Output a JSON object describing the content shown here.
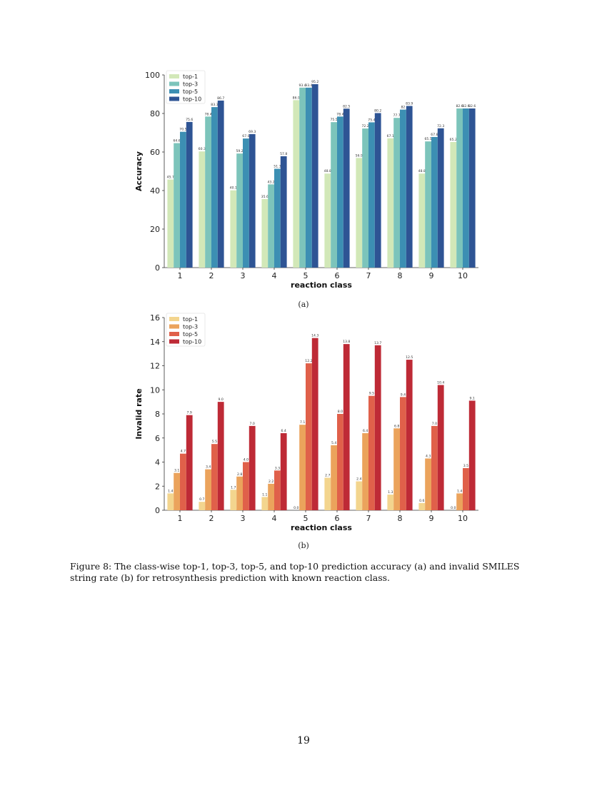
{
  "chart_data": [
    {
      "id": "a",
      "type": "bar",
      "title": "",
      "xlabel": "reaction class",
      "ylabel": "Accuracy",
      "ylim": [
        0,
        100
      ],
      "yticks": [
        0,
        20,
        40,
        60,
        80,
        100
      ],
      "categories": [
        "1",
        "2",
        "3",
        "4",
        "5",
        "6",
        "7",
        "8",
        "9",
        "10"
      ],
      "legend_position": "top-left",
      "grid": false,
      "series": [
        {
          "name": "top-1",
          "color": "#d2e8b8",
          "values": [
            45.7,
            60.3,
            40.1,
            35.6,
            86.9,
            48.8,
            56.9,
            67.1,
            48.8,
            65.2
          ],
          "labels": [
            "45.7",
            "60.3",
            "40.1",
            "35.6",
            "86.9",
            "48.8",
            "56.9",
            "67.1",
            "48.8",
            "65.2"
          ]
        },
        {
          "name": "top-3",
          "color": "#7cc4bb",
          "values": [
            64.6,
            78.4,
            59.2,
            43.2,
            93.4,
            75.5,
            72.2,
            77.7,
            65.5,
            82.6
          ],
          "labels": [
            "64.6",
            "78.4",
            "59.2",
            "43.2",
            "93.4",
            "75.5",
            "72.2",
            "77.7",
            "65.5",
            "82.6"
          ]
        },
        {
          "name": "top-5",
          "color": "#3c8fb3",
          "values": [
            70.5,
            83.3,
            67.0,
            51.3,
            93.4,
            78.4,
            75.4,
            82.0,
            67.8,
            82.6
          ],
          "labels": [
            "70.5",
            "83.3",
            "67.0",
            "51.3",
            "93.4",
            "78.4",
            "75.4",
            "82",
            "67.8",
            "82.6"
          ]
        },
        {
          "name": "top-10",
          "color": "#2e5494",
          "values": [
            75.6,
            86.7,
            69.3,
            57.8,
            95.2,
            82.5,
            80.2,
            83.9,
            72.3,
            82.6
          ],
          "labels": [
            "75.6",
            "86.7",
            "69.3",
            "57.8",
            "95.2",
            "82.5",
            "80.2",
            "83.9",
            "72.3",
            "82.6"
          ]
        }
      ]
    },
    {
      "id": "b",
      "type": "bar",
      "title": "",
      "xlabel": "reaction class",
      "ylabel": "Invalid rate",
      "ylim": [
        0,
        16
      ],
      "yticks": [
        0,
        2,
        4,
        6,
        8,
        10,
        12,
        14,
        16
      ],
      "categories": [
        "1",
        "2",
        "3",
        "4",
        "5",
        "6",
        "7",
        "8",
        "9",
        "10"
      ],
      "legend_position": "top-left",
      "grid": false,
      "series": [
        {
          "name": "top-1",
          "color": "#f3d58e",
          "values": [
            1.4,
            0.7,
            1.7,
            1.1,
            0.0,
            2.7,
            2.4,
            1.3,
            0.6,
            0.0
          ],
          "labels": [
            "1.4",
            "0.7",
            "1.7",
            "1.1",
            "0.0",
            "2.7",
            "2.4",
            "1.3",
            "0.6",
            "0.0"
          ]
        },
        {
          "name": "top-3",
          "color": "#eba35c",
          "values": [
            3.1,
            3.4,
            2.8,
            2.2,
            7.1,
            5.4,
            6.4,
            6.8,
            4.3,
            1.4
          ],
          "labels": [
            "3.1",
            "3.4",
            "2.8",
            "2.2",
            "7.1",
            "5.4",
            "6.4",
            "6.8",
            "4.3",
            "1.4"
          ]
        },
        {
          "name": "top-5",
          "color": "#e0604a",
          "values": [
            4.7,
            5.5,
            4.0,
            3.3,
            12.2,
            8.0,
            9.5,
            9.4,
            7.0,
            3.5
          ],
          "labels": [
            "4.7",
            "5.5",
            "4.0",
            "3.3",
            "12.2",
            "8.0",
            "9.5",
            "9.4",
            "7.0",
            "3.5"
          ]
        },
        {
          "name": "top-10",
          "color": "#be2a36",
          "values": [
            7.9,
            9.0,
            7.0,
            6.4,
            14.3,
            13.8,
            13.7,
            12.5,
            10.4,
            9.1
          ],
          "labels": [
            "7.9",
            "9.0",
            "7.0",
            "6.4",
            "14.3",
            "13.8",
            "13.7",
            "12.5",
            "10.4",
            "9.1"
          ]
        }
      ]
    }
  ],
  "figure": {
    "sublabel_a": "(a)",
    "sublabel_b": "(b)",
    "caption": "Figure 8: The class-wise top-1, top-3, top-5, and top-10 prediction accuracy (a) and invalid SMILES string rate (b) for retrosynthesis prediction with known reaction class."
  },
  "page": {
    "number": "19"
  }
}
